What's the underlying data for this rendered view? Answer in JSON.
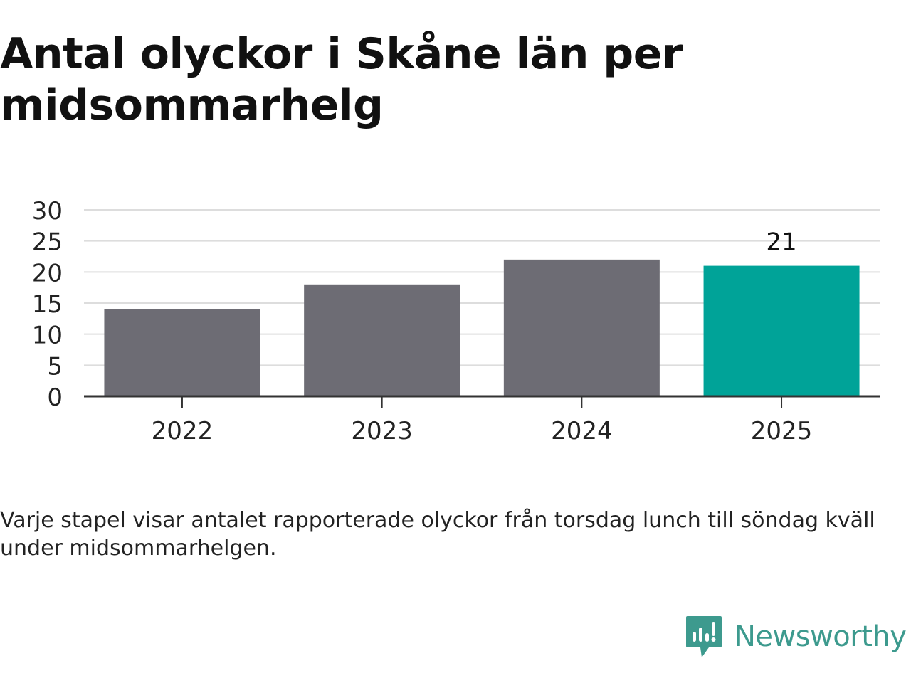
{
  "title": "Antal olyckor i Skåne län per midsommarhelg",
  "caption": "Varje stapel visar antalet rapporterade olyckor från torsdag lunch till söndag kväll under midsommarhelgen.",
  "brand": {
    "name": "Newsworthy",
    "icon": "newsworthy-logo-icon",
    "color": "#3d9a8e"
  },
  "chart_data": {
    "type": "bar",
    "categories": [
      "2022",
      "2023",
      "2024",
      "2025"
    ],
    "values": [
      14,
      18,
      22,
      21
    ],
    "highlight_index": 3,
    "data_labels": [
      null,
      null,
      null,
      "21"
    ],
    "ylim": [
      0,
      30
    ],
    "yticks": [
      0,
      5,
      10,
      15,
      20,
      25,
      30
    ],
    "grid": true,
    "colors": {
      "bar": "#6d6c74",
      "highlight": "#00a398",
      "grid": "#dddddd",
      "axis": "#333333"
    },
    "xlabel": "",
    "ylabel": ""
  }
}
